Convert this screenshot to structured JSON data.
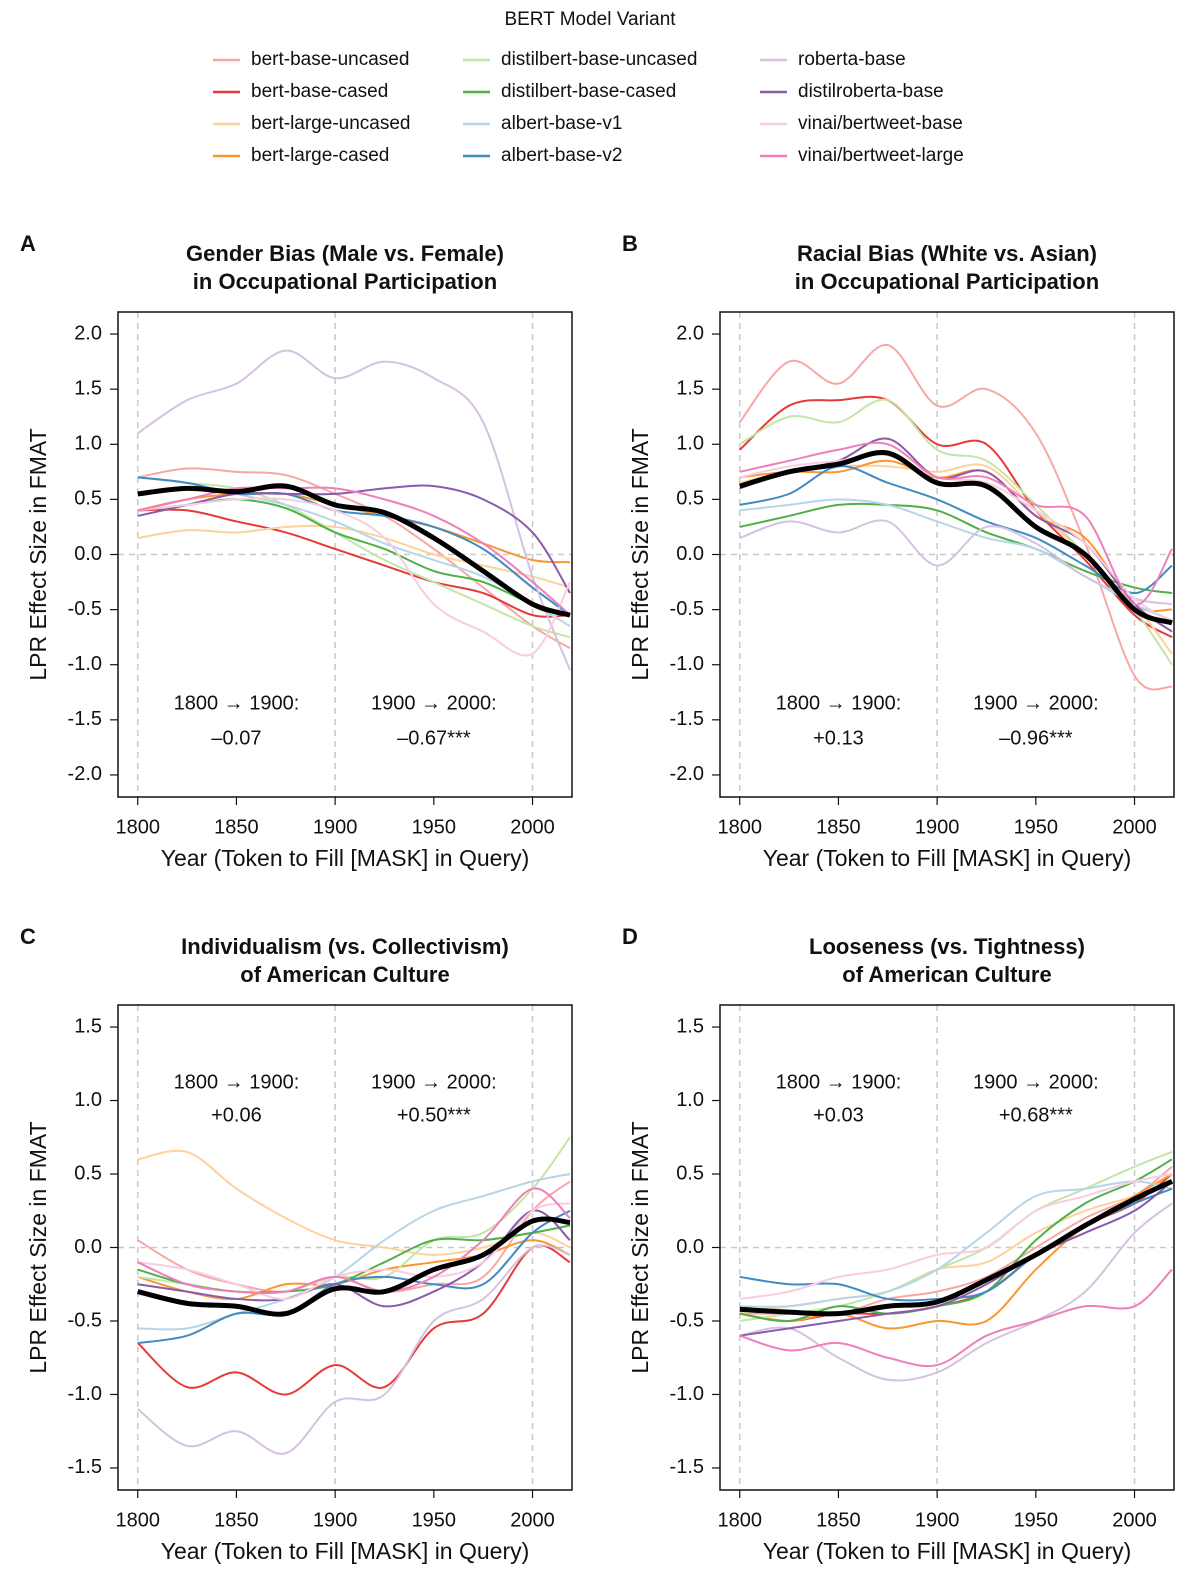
{
  "legend": {
    "title": "BERT Model Variant",
    "series": [
      {
        "name": "bert-base-uncased",
        "color": "#f7a8a6"
      },
      {
        "name": "bert-base-cased",
        "color": "#e8393a"
      },
      {
        "name": "bert-large-uncased",
        "color": "#fdd29a"
      },
      {
        "name": "bert-large-cased",
        "color": "#fb9630"
      },
      {
        "name": "distilbert-base-uncased",
        "color": "#c3e5a7"
      },
      {
        "name": "distilbert-base-cased",
        "color": "#4fb046"
      },
      {
        "name": "albert-base-v1",
        "color": "#b6d6e8"
      },
      {
        "name": "albert-base-v2",
        "color": "#3f8bc2"
      },
      {
        "name": "roberta-base",
        "color": "#d6c2e0"
      },
      {
        "name": "distilroberta-base",
        "color": "#8a5aab"
      },
      {
        "name": "vinai/bertweet-base",
        "color": "#f8cde1"
      },
      {
        "name": "vinai/bertweet-large",
        "color": "#ef7fbb"
      }
    ]
  },
  "chart_data": [
    {
      "type": "line",
      "panel": "A",
      "title": [
        "Gender Bias (Male vs. Female)",
        "in Occupational Participation"
      ],
      "xlabel": "Year (Token to Fill [MASK] in Query)",
      "ylabel": "LPR Effect Size in FMAT",
      "xlim": [
        1790,
        2020
      ],
      "ylim": [
        -2.2,
        2.2
      ],
      "xticks": [
        1800,
        1850,
        1900,
        1950,
        2000
      ],
      "yticks": [
        {
          "value": 2,
          "label": "2.0"
        },
        1.5,
        {
          "value": 1,
          "label": "1.0"
        },
        0.5,
        {
          "value": 0,
          "label": "0.0"
        },
        -0.5,
        {
          "value": -1,
          "label": "-1.0"
        },
        -1.5,
        {
          "value": -2,
          "label": "-2.0"
        }
      ],
      "vlines": [
        1800,
        1900,
        2000
      ],
      "hline": 0,
      "annotations": [
        [
          "1800 → 1900:",
          "–0.07"
        ],
        [
          "1900 → 2000:",
          "–0.67***"
        ]
      ],
      "x": [
        1800,
        1825,
        1850,
        1875,
        1900,
        1925,
        1950,
        1975,
        2000,
        2019
      ],
      "series": [
        {
          "values": [
            0.7,
            0.78,
            0.75,
            0.72,
            0.55,
            0.35,
            0.05,
            -0.3,
            -0.65,
            -0.85
          ]
        },
        {
          "values": [
            0.4,
            0.4,
            0.3,
            0.2,
            0.05,
            -0.1,
            -0.25,
            -0.35,
            -0.55,
            -0.55
          ]
        },
        {
          "values": [
            0.15,
            0.22,
            0.2,
            0.25,
            0.25,
            0.15,
            0.0,
            -0.1,
            -0.2,
            -0.3
          ]
        },
        {
          "values": [
            0.4,
            0.5,
            0.55,
            0.55,
            0.45,
            0.35,
            0.25,
            0.1,
            -0.05,
            -0.07
          ]
        },
        {
          "values": [
            0.7,
            0.65,
            0.6,
            0.45,
            0.2,
            -0.05,
            -0.25,
            -0.45,
            -0.65,
            -0.75
          ]
        },
        {
          "values": [
            0.4,
            0.45,
            0.5,
            0.42,
            0.2,
            0.05,
            -0.15,
            -0.25,
            -0.45,
            -0.55
          ]
        },
        {
          "values": [
            0.7,
            0.65,
            0.55,
            0.45,
            0.3,
            0.1,
            -0.05,
            -0.2,
            -0.45,
            -0.65
          ]
        },
        {
          "values": [
            0.7,
            0.65,
            0.55,
            0.55,
            0.4,
            0.35,
            0.25,
            0.05,
            -0.3,
            -0.55
          ]
        },
        {
          "values": [
            1.1,
            1.4,
            1.55,
            1.85,
            1.6,
            1.75,
            1.6,
            1.2,
            -0.2,
            -1.05
          ]
        },
        {
          "values": [
            0.35,
            0.45,
            0.55,
            0.55,
            0.55,
            0.6,
            0.62,
            0.5,
            0.2,
            -0.35
          ]
        },
        {
          "values": [
            0.4,
            0.45,
            0.5,
            0.5,
            0.4,
            0.15,
            -0.45,
            -0.7,
            -0.9,
            -0.25
          ]
        },
        {
          "values": [
            0.4,
            0.5,
            0.6,
            0.6,
            0.6,
            0.5,
            0.35,
            0.1,
            -0.25,
            -0.55
          ]
        }
      ],
      "mean": {
        "color": "#000000",
        "values": [
          0.55,
          0.6,
          0.57,
          0.62,
          0.45,
          0.38,
          0.15,
          -0.15,
          -0.45,
          -0.55
        ]
      }
    },
    {
      "type": "line",
      "panel": "B",
      "title": [
        "Racial Bias (White vs. Asian)",
        "in Occupational Participation"
      ],
      "xlabel": "Year (Token to Fill [MASK] in Query)",
      "ylabel": "LPR Effect Size in FMAT",
      "xlim": [
        1790,
        2020
      ],
      "ylim": [
        -2.2,
        2.2
      ],
      "xticks": [
        1800,
        1850,
        1900,
        1950,
        2000
      ],
      "yticks": [
        {
          "value": 2,
          "label": "2.0"
        },
        1.5,
        {
          "value": 1,
          "label": "1.0"
        },
        0.5,
        {
          "value": 0,
          "label": "0.0"
        },
        -0.5,
        {
          "value": -1,
          "label": "-1.0"
        },
        -1.5,
        {
          "value": -2,
          "label": "-2.0"
        }
      ],
      "vlines": [
        1800,
        1900,
        2000
      ],
      "hline": 0,
      "annotations": [
        [
          "1800 → 1900:",
          "+0.13"
        ],
        [
          "1900 → 2000:",
          "–0.96***"
        ]
      ],
      "x": [
        1800,
        1825,
        1850,
        1875,
        1900,
        1925,
        1950,
        1975,
        2000,
        2019
      ],
      "series": [
        {
          "values": [
            1.2,
            1.75,
            1.55,
            1.9,
            1.35,
            1.5,
            1.1,
            0.1,
            -1.1,
            -1.2
          ]
        },
        {
          "values": [
            0.95,
            1.35,
            1.4,
            1.4,
            1.0,
            1.0,
            0.4,
            -0.05,
            -0.55,
            -0.75
          ]
        },
        {
          "values": [
            0.65,
            0.75,
            0.8,
            0.8,
            0.75,
            0.8,
            0.4,
            0.0,
            -0.45,
            -0.9
          ]
        },
        {
          "values": [
            0.7,
            0.75,
            0.75,
            0.85,
            0.7,
            0.75,
            0.35,
            0.15,
            -0.45,
            -0.5
          ]
        },
        {
          "values": [
            1.0,
            1.25,
            1.2,
            1.4,
            0.95,
            0.85,
            0.45,
            0.0,
            -0.5,
            -1.0
          ]
        },
        {
          "values": [
            0.25,
            0.35,
            0.45,
            0.45,
            0.4,
            0.2,
            0.05,
            -0.15,
            -0.3,
            -0.35
          ]
        },
        {
          "values": [
            0.4,
            0.45,
            0.5,
            0.45,
            0.3,
            0.15,
            0.05,
            -0.2,
            -0.45,
            -0.6
          ]
        },
        {
          "values": [
            0.45,
            0.55,
            0.8,
            0.65,
            0.5,
            0.3,
            0.15,
            -0.1,
            -0.35,
            -0.1
          ]
        },
        {
          "values": [
            0.15,
            0.3,
            0.2,
            0.3,
            -0.1,
            0.25,
            0.1,
            -0.2,
            -0.4,
            -0.45
          ]
        },
        {
          "values": [
            0.6,
            0.75,
            0.85,
            1.05,
            0.7,
            0.75,
            0.35,
            0.1,
            -0.45,
            -0.7
          ]
        },
        {
          "values": [
            0.7,
            0.8,
            0.85,
            0.9,
            0.7,
            0.65,
            0.4,
            0.1,
            -0.4,
            -0.6
          ]
        },
        {
          "values": [
            0.75,
            0.85,
            0.95,
            1.0,
            0.7,
            0.7,
            0.45,
            0.35,
            -0.45,
            0.05
          ]
        }
      ],
      "mean": {
        "color": "#000000",
        "values": [
          0.62,
          0.75,
          0.82,
          0.92,
          0.65,
          0.62,
          0.25,
          0.0,
          -0.5,
          -0.62
        ]
      }
    },
    {
      "type": "line",
      "panel": "C",
      "title": [
        "Individualism (vs. Collectivism)",
        "of American Culture"
      ],
      "xlabel": "Year (Token to Fill [MASK] in Query)",
      "ylabel": "LPR Effect Size in FMAT",
      "xlim": [
        1790,
        2020
      ],
      "ylim": [
        -1.65,
        1.65
      ],
      "xticks": [
        1800,
        1850,
        1900,
        1950,
        2000
      ],
      "yticks": [
        1.5,
        {
          "value": 1,
          "label": "1.0"
        },
        0.5,
        {
          "value": 0,
          "label": "0.0"
        },
        -0.5,
        {
          "value": -1,
          "label": "-1.0"
        },
        -1.5
      ],
      "vlines": [
        1800,
        1900,
        2000
      ],
      "hline": 0,
      "annotations": [
        [
          "1800 → 1900:",
          "+0.06"
        ],
        [
          "1900 → 2000:",
          "+0.50***"
        ]
      ],
      "x": [
        1800,
        1825,
        1850,
        1875,
        1900,
        1925,
        1950,
        1975,
        2000,
        2019
      ],
      "series": [
        {
          "values": [
            0.05,
            -0.15,
            -0.25,
            -0.3,
            -0.2,
            -0.3,
            -0.25,
            -0.2,
            0.25,
            0.45
          ]
        },
        {
          "values": [
            -0.65,
            -0.95,
            -0.85,
            -1.0,
            -0.8,
            -0.95,
            -0.55,
            -0.45,
            0.0,
            -0.1
          ]
        },
        {
          "values": [
            0.6,
            0.65,
            0.4,
            0.2,
            0.05,
            0.0,
            -0.05,
            0.0,
            0.1,
            0.0
          ]
        },
        {
          "values": [
            -0.2,
            -0.3,
            -0.35,
            -0.25,
            -0.25,
            -0.15,
            -0.1,
            -0.05,
            0.05,
            -0.05
          ]
        },
        {
          "values": [
            -0.2,
            -0.25,
            -0.3,
            -0.3,
            -0.2,
            -0.2,
            0.05,
            0.1,
            0.4,
            0.75
          ]
        },
        {
          "values": [
            -0.15,
            -0.25,
            -0.3,
            -0.3,
            -0.25,
            -0.1,
            0.05,
            0.05,
            0.1,
            0.15
          ]
        },
        {
          "values": [
            -0.55,
            -0.55,
            -0.45,
            -0.35,
            -0.2,
            0.05,
            0.25,
            0.35,
            0.45,
            0.5
          ]
        },
        {
          "values": [
            -0.65,
            -0.6,
            -0.45,
            -0.45,
            -0.25,
            -0.2,
            -0.25,
            -0.25,
            0.1,
            0.25
          ]
        },
        {
          "values": [
            -1.1,
            -1.35,
            -1.25,
            -1.4,
            -1.05,
            -1.0,
            -0.5,
            -0.35,
            0.0,
            -0.05
          ]
        },
        {
          "values": [
            -0.25,
            -0.3,
            -0.35,
            -0.35,
            -0.25,
            -0.4,
            -0.3,
            -0.1,
            0.25,
            0.05
          ]
        },
        {
          "values": [
            -0.1,
            -0.15,
            -0.25,
            -0.35,
            -0.2,
            -0.15,
            -0.2,
            -0.1,
            0.25,
            0.3
          ]
        },
        {
          "values": [
            -0.1,
            -0.25,
            -0.3,
            -0.3,
            -0.2,
            -0.3,
            -0.2,
            0.05,
            0.4,
            0.2
          ]
        }
      ],
      "mean": {
        "color": "#000000",
        "values": [
          -0.3,
          -0.38,
          -0.4,
          -0.45,
          -0.28,
          -0.3,
          -0.15,
          -0.05,
          0.18,
          0.17
        ]
      }
    },
    {
      "type": "line",
      "panel": "D",
      "title": [
        "Looseness (vs. Tightness)",
        "of American Culture"
      ],
      "xlabel": "Year (Token to Fill [MASK] in Query)",
      "ylabel": "LPR Effect Size in FMAT",
      "xlim": [
        1790,
        2020
      ],
      "ylim": [
        -1.65,
        1.65
      ],
      "xticks": [
        1800,
        1850,
        1900,
        1950,
        2000
      ],
      "yticks": [
        1.5,
        {
          "value": 1,
          "label": "1.0"
        },
        0.5,
        {
          "value": 0,
          "label": "0.0"
        },
        -0.5,
        {
          "value": -1,
          "label": "-1.0"
        },
        -1.5
      ],
      "vlines": [
        1800,
        1900,
        2000
      ],
      "hline": 0,
      "annotations": [
        [
          "1800 → 1900:",
          "+0.03"
        ],
        [
          "1900 → 2000:",
          "+0.68***"
        ]
      ],
      "x": [
        1800,
        1825,
        1850,
        1875,
        1900,
        1925,
        1950,
        1975,
        2000,
        2019
      ],
      "series": [
        {
          "values": [
            -0.45,
            -0.45,
            -0.45,
            -0.35,
            -0.3,
            -0.2,
            0.0,
            0.2,
            0.35,
            0.55
          ]
        },
        {
          "values": [
            -0.45,
            -0.5,
            -0.45,
            -0.45,
            -0.4,
            -0.3,
            -0.05,
            0.15,
            0.3,
            0.5
          ]
        },
        {
          "values": [
            -0.45,
            -0.4,
            -0.35,
            -0.3,
            -0.15,
            -0.1,
            0.1,
            0.25,
            0.35,
            0.45
          ]
        },
        {
          "values": [
            -0.45,
            -0.5,
            -0.45,
            -0.55,
            -0.5,
            -0.5,
            -0.15,
            0.15,
            0.35,
            0.5
          ]
        },
        {
          "values": [
            -0.5,
            -0.45,
            -0.4,
            -0.3,
            -0.15,
            0.0,
            0.25,
            0.4,
            0.55,
            0.65
          ]
        },
        {
          "values": [
            -0.45,
            -0.5,
            -0.4,
            -0.45,
            -0.4,
            -0.3,
            0.05,
            0.3,
            0.45,
            0.6
          ]
        },
        {
          "values": [
            -0.4,
            -0.4,
            -0.35,
            -0.3,
            -0.15,
            0.1,
            0.35,
            0.4,
            0.45,
            0.4
          ]
        },
        {
          "values": [
            -0.2,
            -0.25,
            -0.25,
            -0.35,
            -0.35,
            -0.3,
            -0.05,
            0.15,
            0.3,
            0.4
          ]
        },
        {
          "values": [
            -0.6,
            -0.55,
            -0.75,
            -0.9,
            -0.85,
            -0.65,
            -0.5,
            -0.3,
            0.1,
            0.3
          ]
        },
        {
          "values": [
            -0.6,
            -0.55,
            -0.5,
            -0.45,
            -0.4,
            -0.25,
            -0.05,
            0.1,
            0.25,
            0.45
          ]
        },
        {
          "values": [
            -0.35,
            -0.3,
            -0.2,
            -0.15,
            -0.05,
            0.0,
            0.25,
            0.35,
            0.45,
            0.5
          ]
        },
        {
          "values": [
            -0.6,
            -0.7,
            -0.65,
            -0.75,
            -0.8,
            -0.6,
            -0.5,
            -0.4,
            -0.4,
            -0.15
          ]
        }
      ],
      "mean": {
        "color": "#000000",
        "values": [
          -0.42,
          -0.44,
          -0.45,
          -0.4,
          -0.37,
          -0.22,
          -0.05,
          0.15,
          0.33,
          0.45
        ]
      }
    }
  ]
}
